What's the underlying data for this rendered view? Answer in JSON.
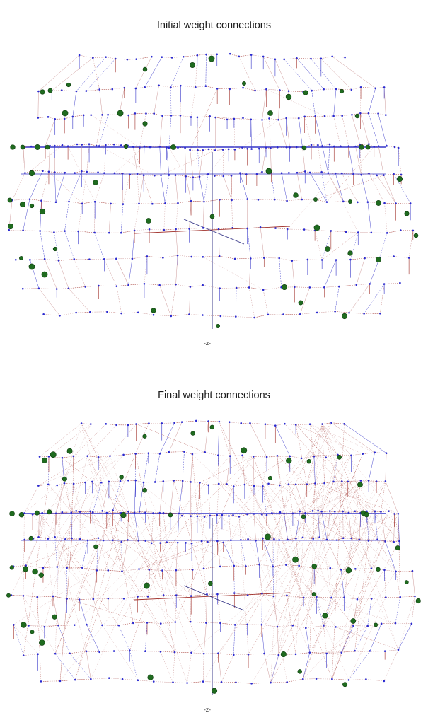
{
  "panels": [
    {
      "title": "Initial weight connections",
      "axis_label": "-z-",
      "graph": {
        "variant": "initial",
        "link_density": "sparse"
      }
    },
    {
      "title": "Final weight connections",
      "axis_label": "-z-",
      "graph": {
        "variant": "final",
        "link_density": "dense"
      }
    }
  ],
  "colors": {
    "node_small": "#2a2ad0",
    "node_large": "#1f6b1f",
    "node_large_edge": "#0f3d0f",
    "link_weak": "#c89090",
    "link_strong": "#a0302a",
    "link_vertical": "#3535c8",
    "axis": "#2a2a80"
  }
}
